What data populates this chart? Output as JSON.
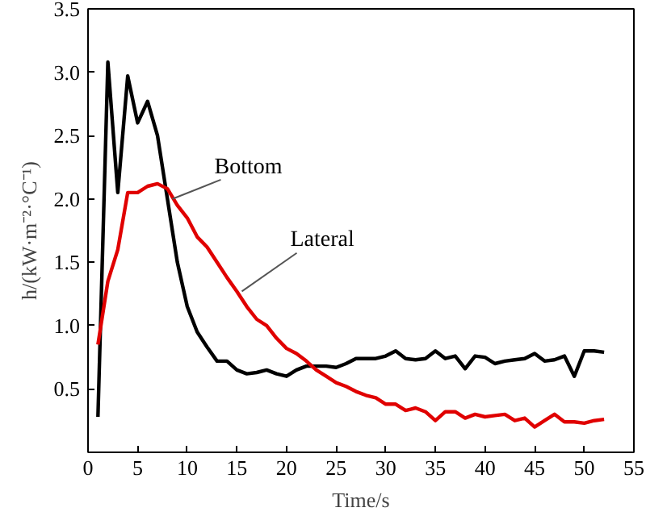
{
  "chart_data": {
    "type": "line",
    "xlabel": "Time/s",
    "ylabel": "h/(kW·m⁻²·°C⁻¹)",
    "xlim": [
      0,
      55
    ],
    "ylim": [
      0,
      3.5
    ],
    "xticks": [
      0,
      5,
      10,
      15,
      20,
      25,
      30,
      35,
      40,
      45,
      50,
      55
    ],
    "yticks": [
      {
        "value": 0.5,
        "label": "0.5"
      },
      {
        "value": 1,
        "label": "1.0"
      },
      {
        "value": 1.5,
        "label": "1.5"
      },
      {
        "value": 2,
        "label": "2.0"
      },
      {
        "value": 2.5,
        "label": "2.5"
      },
      {
        "value": 3,
        "label": "3.0"
      },
      {
        "value": 3.5,
        "label": "3.5"
      }
    ],
    "grid": false,
    "legend": false,
    "marker": "none",
    "line_style": "solid",
    "x": [
      1,
      2,
      3,
      4,
      5,
      6,
      7,
      8,
      9,
      10,
      11,
      12,
      13,
      14,
      15,
      16,
      17,
      18,
      19,
      20,
      21,
      22,
      23,
      24,
      25,
      26,
      27,
      28,
      29,
      30,
      31,
      32,
      33,
      34,
      35,
      36,
      37,
      38,
      39,
      40,
      41,
      42,
      43,
      44,
      45,
      46,
      47,
      48,
      49,
      50,
      51,
      52
    ],
    "series": [
      {
        "name": "Bottom",
        "color": "#000000",
        "values": [
          0.28,
          3.08,
          2.05,
          2.97,
          2.6,
          2.77,
          2.5,
          2.0,
          1.5,
          1.15,
          0.95,
          0.83,
          0.72,
          0.72,
          0.65,
          0.62,
          0.63,
          0.65,
          0.62,
          0.6,
          0.65,
          0.68,
          0.68,
          0.68,
          0.67,
          0.7,
          0.74,
          0.74,
          0.74,
          0.76,
          0.8,
          0.74,
          0.73,
          0.74,
          0.8,
          0.74,
          0.76,
          0.66,
          0.76,
          0.75,
          0.7,
          0.72,
          0.73,
          0.74,
          0.78,
          0.72,
          0.73,
          0.76,
          0.6,
          0.8,
          0.8,
          0.79
        ]
      },
      {
        "name": "Lateral",
        "color": "#e00000",
        "values": [
          0.85,
          1.35,
          1.6,
          2.05,
          2.05,
          2.1,
          2.12,
          2.08,
          1.95,
          1.85,
          1.7,
          1.62,
          1.5,
          1.38,
          1.27,
          1.15,
          1.05,
          1.0,
          0.9,
          0.82,
          0.78,
          0.72,
          0.65,
          0.6,
          0.55,
          0.52,
          0.48,
          0.45,
          0.43,
          0.38,
          0.38,
          0.33,
          0.35,
          0.32,
          0.25,
          0.32,
          0.32,
          0.27,
          0.3,
          0.28,
          0.29,
          0.3,
          0.25,
          0.27,
          0.2,
          0.25,
          0.3,
          0.24,
          0.24,
          0.23,
          0.25,
          0.26
        ]
      }
    ]
  }
}
